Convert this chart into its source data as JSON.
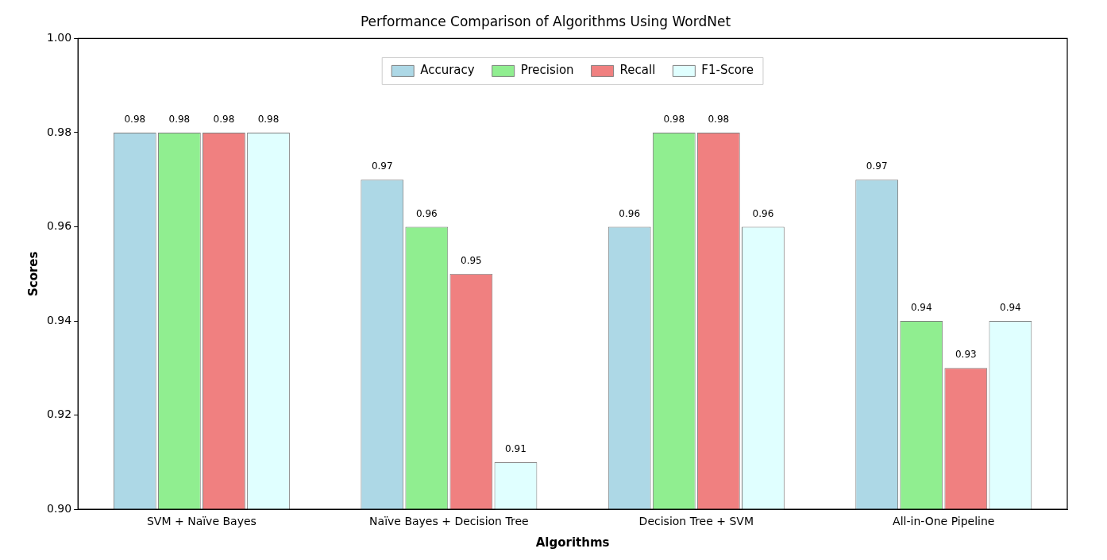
{
  "chart_data": {
    "type": "bar",
    "title": "Performance Comparison of Algorithms Using WordNet",
    "xlabel": "Algorithms",
    "ylabel": "Scores",
    "categories": [
      "SVM + Naïve Bayes",
      "Naïve Bayes + Decision Tree",
      "Decision Tree + SVM",
      "All-in-One Pipeline"
    ],
    "series": [
      {
        "name": "Accuracy",
        "color": "#add8e6",
        "values": [
          0.98,
          0.97,
          0.96,
          0.97
        ]
      },
      {
        "name": "Precision",
        "color": "#90ee90",
        "values": [
          0.98,
          0.96,
          0.98,
          0.94
        ]
      },
      {
        "name": "Recall",
        "color": "#f08080",
        "values": [
          0.98,
          0.95,
          0.98,
          0.93
        ]
      },
      {
        "name": "F1-Score",
        "color": "#e0ffff",
        "values": [
          0.98,
          0.91,
          0.96,
          0.94
        ]
      }
    ],
    "ylim": [
      0.9,
      1.0
    ],
    "yticks": [
      {
        "value": 0.9,
        "label": "0.90"
      },
      {
        "value": 0.92,
        "label": "0.92"
      },
      {
        "value": 0.94,
        "label": "0.94"
      },
      {
        "value": 0.96,
        "label": "0.96"
      },
      {
        "value": 0.98,
        "label": "0.98"
      },
      {
        "value": 1.0,
        "label": "1.00"
      }
    ],
    "grid": false,
    "legend": "top",
    "data_labels": true
  }
}
